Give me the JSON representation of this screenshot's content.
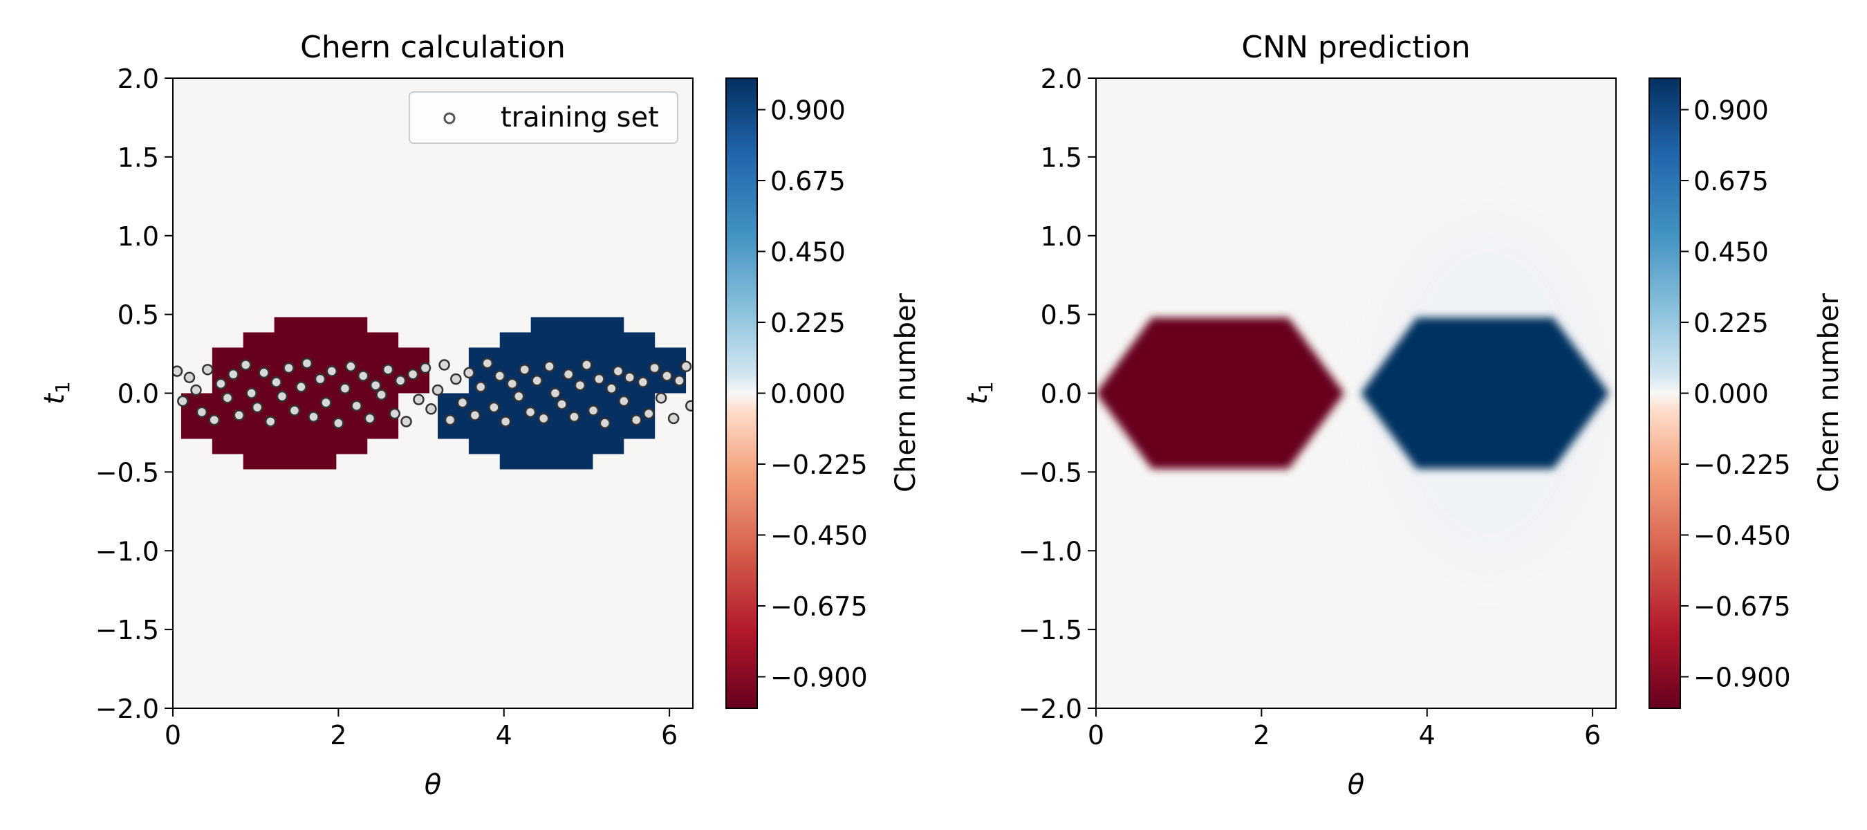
{
  "chart_data": [
    {
      "type": "heatmap",
      "title": "Chern calculation",
      "xlabel": "θ",
      "ylabel_base": "t",
      "ylabel_sub": "1",
      "xlim": [
        0,
        6.283
      ],
      "ylim": [
        -2.0,
        2.0
      ],
      "xticks": [
        0,
        2,
        4,
        6
      ],
      "yticks": [
        "2.0",
        "1.5",
        "1.0",
        "0.5",
        "0.0",
        "−0.5",
        "−1.0",
        "−1.5",
        "−2.0"
      ],
      "ytick_values": [
        2.0,
        1.5,
        1.0,
        0.5,
        0.0,
        -0.5,
        -1.0,
        -1.5,
        -2.0
      ],
      "regions": [
        {
          "value": -1,
          "theta_center": 1.6,
          "theta_halfwidth": 1.5,
          "t1_halfheight": 0.5,
          "edge": "stepped"
        },
        {
          "value": 1,
          "theta_center": 4.7,
          "theta_halfwidth": 1.5,
          "t1_halfheight": 0.5,
          "edge": "stepped"
        }
      ],
      "background_value": 0,
      "legend": {
        "label": "training set",
        "location": "upper right"
      },
      "scatter": {
        "name": "training set",
        "theta_range": [
          0,
          6.283
        ],
        "t1_range": [
          -0.2,
          0.2
        ],
        "points": [
          [
            0.05,
            0.14
          ],
          [
            0.12,
            -0.05
          ],
          [
            0.2,
            0.1
          ],
          [
            0.28,
            0.02
          ],
          [
            0.35,
            -0.12
          ],
          [
            0.42,
            0.15
          ],
          [
            0.5,
            -0.17
          ],
          [
            0.58,
            0.06
          ],
          [
            0.66,
            -0.03
          ],
          [
            0.73,
            0.12
          ],
          [
            0.8,
            -0.14
          ],
          [
            0.88,
            0.18
          ],
          [
            0.95,
            0.0
          ],
          [
            1.02,
            -0.09
          ],
          [
            1.1,
            0.13
          ],
          [
            1.18,
            -0.18
          ],
          [
            1.25,
            0.07
          ],
          [
            1.32,
            -0.02
          ],
          [
            1.4,
            0.16
          ],
          [
            1.47,
            -0.11
          ],
          [
            1.55,
            0.04
          ],
          [
            1.62,
            0.19
          ],
          [
            1.7,
            -0.15
          ],
          [
            1.78,
            0.09
          ],
          [
            1.85,
            -0.06
          ],
          [
            1.92,
            0.14
          ],
          [
            2.0,
            -0.19
          ],
          [
            2.08,
            0.03
          ],
          [
            2.15,
            0.17
          ],
          [
            2.22,
            -0.08
          ],
          [
            2.3,
            0.11
          ],
          [
            2.38,
            -0.16
          ],
          [
            2.45,
            0.05
          ],
          [
            2.52,
            -0.01
          ],
          [
            2.6,
            0.15
          ],
          [
            2.68,
            -0.13
          ],
          [
            2.75,
            0.08
          ],
          [
            2.82,
            -0.18
          ],
          [
            2.9,
            0.12
          ],
          [
            2.97,
            -0.04
          ],
          [
            3.05,
            0.16
          ],
          [
            3.12,
            -0.1
          ],
          [
            3.2,
            0.02
          ],
          [
            3.28,
            0.18
          ],
          [
            3.35,
            -0.17
          ],
          [
            3.42,
            0.09
          ],
          [
            3.5,
            -0.06
          ],
          [
            3.58,
            0.13
          ],
          [
            3.65,
            -0.14
          ],
          [
            3.72,
            0.04
          ],
          [
            3.8,
            0.19
          ],
          [
            3.88,
            -0.09
          ],
          [
            3.95,
            0.11
          ],
          [
            4.02,
            -0.18
          ],
          [
            4.1,
            0.06
          ],
          [
            4.18,
            -0.02
          ],
          [
            4.25,
            0.15
          ],
          [
            4.32,
            -0.12
          ],
          [
            4.4,
            0.08
          ],
          [
            4.48,
            -0.16
          ],
          [
            4.55,
            0.17
          ],
          [
            4.62,
            0.0
          ],
          [
            4.7,
            -0.07
          ],
          [
            4.78,
            0.12
          ],
          [
            4.85,
            -0.15
          ],
          [
            4.92,
            0.05
          ],
          [
            5.0,
            0.18
          ],
          [
            5.08,
            -0.11
          ],
          [
            5.15,
            0.09
          ],
          [
            5.22,
            -0.19
          ],
          [
            5.3,
            0.03
          ],
          [
            5.38,
            0.14
          ],
          [
            5.45,
            -0.05
          ],
          [
            5.52,
            0.1
          ],
          [
            5.6,
            -0.17
          ],
          [
            5.68,
            0.07
          ],
          [
            5.75,
            -0.13
          ],
          [
            5.82,
            0.16
          ],
          [
            5.9,
            -0.03
          ],
          [
            5.97,
            0.11
          ],
          [
            6.05,
            -0.16
          ],
          [
            6.12,
            0.08
          ],
          [
            6.2,
            0.17
          ],
          [
            6.26,
            -0.08
          ]
        ]
      }
    },
    {
      "type": "heatmap",
      "title": "CNN prediction",
      "xlabel": "θ",
      "ylabel_base": "t",
      "ylabel_sub": "1",
      "xlim": [
        0,
        6.283
      ],
      "ylim": [
        -2.0,
        2.0
      ],
      "xticks": [
        0,
        2,
        4,
        6
      ],
      "yticks": [
        "2.0",
        "1.5",
        "1.0",
        "0.5",
        "0.0",
        "−0.5",
        "−1.0",
        "−1.5",
        "−2.0"
      ],
      "ytick_values": [
        2.0,
        1.5,
        1.0,
        0.5,
        0.0,
        -0.5,
        -1.0,
        -1.5,
        -2.0
      ],
      "regions": [
        {
          "value": -1,
          "theta_center": 1.5,
          "theta_halfwidth": 1.5,
          "t1_halfheight": 0.48,
          "edge": "smooth"
        },
        {
          "value": 1,
          "theta_center": 4.7,
          "theta_halfwidth": 1.5,
          "t1_halfheight": 0.48,
          "edge": "smooth"
        },
        {
          "value": 0.05,
          "theta_center": 4.75,
          "theta_halfwidth": 1.45,
          "t1_halfheight": 1.15,
          "edge": "soft-halo"
        }
      ],
      "background_value": 0
    }
  ],
  "colorbar": {
    "label": "Chern number",
    "range": [
      -1,
      1
    ],
    "ticks": [
      "0.900",
      "0.675",
      "0.450",
      "0.225",
      "0.000",
      "−0.225",
      "−0.450",
      "−0.675",
      "−0.900"
    ],
    "tick_values": [
      0.9,
      0.675,
      0.45,
      0.225,
      0.0,
      -0.225,
      -0.45,
      -0.675,
      -0.9
    ],
    "colormap": "RdBu",
    "colors": {
      "neg_end": "#67001f",
      "neg_mid": "#d6604d",
      "neg_light": "#f4a582",
      "zero": "#f7f7f7",
      "pos_light": "#92c5de",
      "pos_mid": "#2166ac",
      "pos_end": "#053061"
    }
  }
}
